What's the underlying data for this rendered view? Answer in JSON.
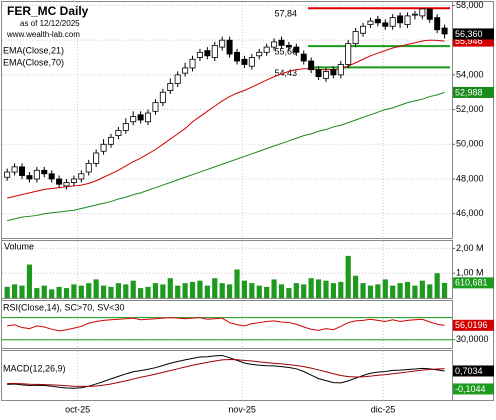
{
  "chart_data": [
    {
      "type": "candlestick",
      "title": "FER_MC Daily",
      "subtitle": "as of 12/12/2025",
      "source": "www.wealth-lab.com",
      "candles": {
        "open": [
          48.1,
          48.4,
          48.7,
          48.2,
          48.0,
          48.5,
          48.3,
          48.0,
          47.6,
          47.8,
          48.0,
          48.4,
          48.9,
          49.6,
          50.0,
          50.5,
          50.8,
          51.3,
          51.7,
          51.3,
          51.9,
          52.4,
          53.1,
          53.5,
          54.1,
          54.4,
          55.0,
          55.4,
          55.0,
          55.6,
          56.0,
          55.3,
          54.9,
          54.5,
          55.1,
          55.3,
          55.6,
          56.0,
          55.7,
          55.6,
          55.2,
          54.8,
          54.3,
          53.8,
          54.3,
          54.0,
          54.6,
          55.8,
          56.4,
          56.9,
          57.2,
          57.0,
          56.8,
          57.4,
          56.9,
          57.5,
          57.4,
          57.8,
          57.3,
          56.7
        ],
        "high": [
          48.6,
          48.9,
          48.9,
          48.4,
          48.7,
          48.7,
          48.5,
          48.2,
          48.0,
          48.2,
          48.5,
          49.1,
          49.7,
          50.3,
          50.6,
          51.0,
          51.5,
          51.9,
          51.9,
          52.0,
          52.6,
          53.2,
          53.8,
          54.2,
          54.7,
          55.1,
          55.5,
          55.6,
          55.9,
          56.2,
          56.2,
          55.5,
          55.1,
          55.2,
          55.5,
          55.8,
          56.1,
          56.2,
          55.9,
          55.8,
          55.4,
          55.0,
          54.5,
          54.4,
          54.5,
          54.8,
          56.0,
          56.7,
          57.0,
          57.3,
          57.4,
          57.2,
          57.5,
          57.6,
          57.6,
          57.7,
          57.84,
          57.8,
          57.5,
          56.9
        ],
        "low": [
          47.9,
          48.2,
          48.0,
          47.8,
          47.8,
          48.1,
          47.8,
          47.5,
          47.4,
          47.6,
          47.8,
          48.2,
          48.7,
          49.4,
          49.8,
          50.3,
          50.6,
          51.1,
          51.2,
          51.1,
          51.7,
          52.2,
          52.9,
          53.3,
          53.9,
          54.2,
          54.8,
          54.9,
          54.8,
          55.4,
          55.0,
          54.6,
          54.4,
          54.3,
          54.9,
          55.1,
          55.4,
          55.5,
          55.4,
          55.1,
          54.6,
          54.1,
          53.7,
          53.6,
          53.8,
          53.8,
          54.4,
          55.6,
          56.2,
          56.7,
          56.8,
          56.6,
          56.6,
          56.7,
          56.7,
          57.2,
          57.2,
          57.0,
          56.4,
          56.1
        ],
        "close": [
          48.4,
          48.7,
          48.2,
          48.0,
          48.5,
          48.3,
          48.0,
          47.7,
          47.8,
          48.0,
          48.3,
          48.9,
          49.5,
          50.0,
          50.4,
          50.8,
          51.2,
          51.6,
          51.4,
          51.8,
          52.4,
          53.0,
          53.5,
          54.0,
          54.4,
          54.9,
          55.3,
          55.1,
          55.7,
          56.0,
          55.2,
          54.8,
          54.6,
          55.0,
          55.3,
          55.6,
          55.9,
          55.7,
          55.6,
          55.3,
          54.8,
          54.3,
          53.9,
          54.2,
          54.0,
          54.6,
          55.8,
          56.5,
          56.8,
          57.1,
          57.0,
          56.8,
          57.3,
          57.0,
          57.4,
          57.5,
          57.8,
          57.2,
          56.6,
          56.36
        ],
        "last_label": "56,360"
      },
      "series": [
        {
          "name": "EMA(Close,21)",
          "color": "#d40000",
          "last_label": "55,946",
          "values": [
            46.9,
            47.0,
            47.1,
            47.2,
            47.3,
            47.4,
            47.45,
            47.5,
            47.55,
            47.6,
            47.65,
            47.75,
            47.9,
            48.1,
            48.3,
            48.5,
            48.75,
            49.0,
            49.2,
            49.45,
            49.7,
            50.0,
            50.3,
            50.6,
            50.9,
            51.3,
            51.6,
            51.9,
            52.2,
            52.5,
            52.75,
            52.95,
            53.1,
            53.3,
            53.5,
            53.7,
            53.9,
            54.05,
            54.2,
            54.3,
            54.35,
            54.35,
            54.3,
            54.3,
            54.3,
            54.35,
            54.5,
            54.7,
            54.9,
            55.1,
            55.25,
            55.4,
            55.55,
            55.65,
            55.75,
            55.85,
            55.95,
            56.0,
            55.99,
            55.946
          ]
        },
        {
          "name": "EMA(Close,70)",
          "color": "#1a8a1a",
          "last_label": "52,988",
          "values": [
            45.6,
            45.7,
            45.8,
            45.85,
            45.9,
            46.0,
            46.05,
            46.1,
            46.15,
            46.2,
            46.3,
            46.4,
            46.5,
            46.6,
            46.7,
            46.85,
            46.95,
            47.1,
            47.2,
            47.35,
            47.5,
            47.65,
            47.8,
            47.95,
            48.1,
            48.25,
            48.4,
            48.55,
            48.7,
            48.85,
            49.0,
            49.15,
            49.3,
            49.45,
            49.6,
            49.75,
            49.9,
            50.05,
            50.2,
            50.35,
            50.5,
            50.6,
            50.75,
            50.85,
            51.0,
            51.1,
            51.25,
            51.4,
            51.55,
            51.7,
            51.85,
            52.0,
            52.1,
            52.25,
            52.4,
            52.5,
            52.6,
            52.75,
            52.85,
            52.988
          ]
        }
      ],
      "levels": [
        {
          "value": 57.84,
          "label": "57,84",
          "color": "#e00000"
        },
        {
          "value": 55.66,
          "label": "55,66",
          "color": "#1a9a1a"
        },
        {
          "value": 54.43,
          "label": "54,43",
          "color": "#1a9a1a"
        }
      ],
      "ylim": [
        44.6,
        58.2
      ],
      "yticks": [
        {
          "value": 46,
          "label": "46,000"
        },
        {
          "value": 48,
          "label": "48,000"
        },
        {
          "value": 50,
          "label": "50,000"
        },
        {
          "value": 52,
          "label": "52,000"
        },
        {
          "value": 54,
          "label": "54,000"
        },
        {
          "value": 56,
          "label": "56,000"
        },
        {
          "value": 58,
          "label": "58,000"
        }
      ],
      "grid": true
    },
    {
      "type": "bar",
      "title": "Volume",
      "color": "#1e9a1e",
      "last_label": "610,681",
      "values": [
        0.45,
        0.55,
        0.5,
        1.35,
        0.4,
        0.5,
        0.35,
        0.45,
        0.4,
        0.55,
        0.5,
        0.6,
        0.75,
        0.5,
        0.45,
        0.6,
        0.55,
        0.7,
        0.4,
        0.45,
        0.6,
        0.55,
        0.8,
        0.5,
        0.6,
        0.65,
        0.7,
        0.5,
        0.8,
        0.6,
        0.55,
        1.15,
        0.7,
        0.6,
        0.5,
        0.45,
        0.75,
        0.55,
        0.4,
        0.6,
        0.55,
        0.8,
        0.75,
        0.7,
        0.6,
        0.65,
        1.7,
        0.9,
        0.6,
        0.5,
        0.55,
        0.75,
        0.5,
        0.6,
        0.65,
        0.5,
        0.7,
        0.55,
        1.0,
        0.610681
      ],
      "ylim": [
        0,
        2.3
      ],
      "yticks": [
        {
          "value": 1,
          "label": "1,00 M"
        },
        {
          "value": 2,
          "label": "2,00 M"
        }
      ],
      "grid": true
    },
    {
      "type": "line",
      "title": "RSI(Close,14), SC>70, SV<30",
      "series": [
        {
          "color": "#d40000",
          "last_label": "56,0196",
          "values": [
            55,
            57,
            52,
            50,
            55,
            53,
            49,
            46,
            48,
            51,
            54,
            60,
            63,
            65,
            66,
            67,
            68,
            69,
            66,
            67,
            68,
            69,
            70,
            69,
            68,
            69,
            70,
            67,
            68,
            69,
            61,
            57,
            55,
            59,
            61,
            63,
            64,
            62,
            61,
            58,
            53,
            49,
            47,
            50,
            48,
            54,
            61,
            64,
            65,
            67,
            65,
            63,
            66,
            63,
            65,
            66,
            67,
            62,
            58,
            56.0196
          ]
        }
      ],
      "levels": [
        70,
        30
      ],
      "level_color": "#1a9a1a",
      "ylim": [
        15,
        100
      ],
      "yticks": [
        {
          "value": 30,
          "label": "30,0000"
        }
      ],
      "grid": true
    },
    {
      "type": "line",
      "title": "MACD(12,26,9)",
      "series": [
        {
          "color": "#000000",
          "last_label": "0,7034",
          "values": [
            0.1,
            0.12,
            0.08,
            0.05,
            0.06,
            0.05,
            0.02,
            -0.03,
            -0.06,
            -0.07,
            -0.05,
            0.02,
            0.12,
            0.23,
            0.35,
            0.46,
            0.57,
            0.67,
            0.72,
            0.78,
            0.85,
            0.95,
            1.05,
            1.13,
            1.2,
            1.27,
            1.33,
            1.34,
            1.38,
            1.4,
            1.3,
            1.18,
            1.06,
            1.0,
            0.96,
            0.94,
            0.93,
            0.9,
            0.86,
            0.8,
            0.68,
            0.52,
            0.36,
            0.27,
            0.18,
            0.17,
            0.26,
            0.38,
            0.5,
            0.6,
            0.65,
            0.68,
            0.73,
            0.74,
            0.77,
            0.79,
            0.82,
            0.8,
            0.75,
            0.7034
          ]
        },
        {
          "color": "#a00000",
          "values": [
            0.14,
            0.14,
            0.13,
            0.11,
            0.1,
            0.09,
            0.08,
            0.06,
            0.04,
            0.02,
            0.01,
            0.01,
            0.03,
            0.07,
            0.12,
            0.19,
            0.26,
            0.34,
            0.42,
            0.49,
            0.56,
            0.64,
            0.72,
            0.8,
            0.88,
            0.96,
            1.03,
            1.09,
            1.15,
            1.2,
            1.22,
            1.21,
            1.18,
            1.15,
            1.11,
            1.08,
            1.05,
            1.02,
            0.99,
            0.95,
            0.9,
            0.83,
            0.75,
            0.67,
            0.58,
            0.5,
            0.45,
            0.43,
            0.44,
            0.47,
            0.51,
            0.54,
            0.58,
            0.62,
            0.66,
            0.7,
            0.74,
            0.77,
            0.79,
            0.8078
          ]
        }
      ],
      "histogram": {
        "color": "#1e9a1e",
        "last": -0.1044,
        "last_label": "-0,1044"
      },
      "ylim": [
        -0.6,
        1.6
      ],
      "xlim": [
        -0.7,
        60
      ],
      "xticks": [
        {
          "value": 9.5,
          "label": "oct-25"
        },
        {
          "value": 31.7,
          "label": "nov-25"
        },
        {
          "value": 50.7,
          "label": "dic-25"
        }
      ],
      "grid": true
    }
  ]
}
